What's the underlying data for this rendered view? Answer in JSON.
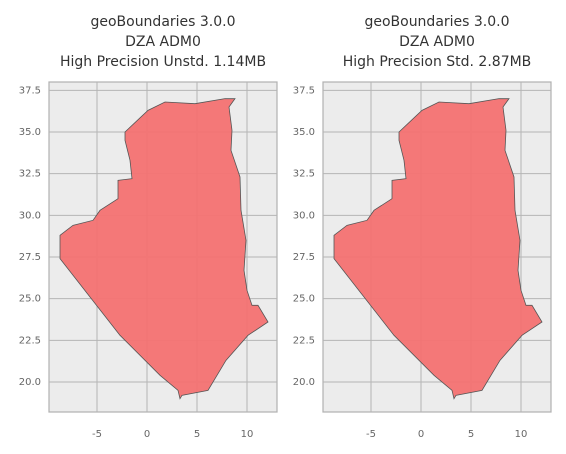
{
  "chart_data": [
    {
      "type": "map",
      "title": [
        "geoBoundaries 3.0.0",
        "DZA ADM0",
        "High Precision Unstd. 1.14MB"
      ],
      "x": [
        -2.2,
        0.1,
        1.8,
        4.8,
        7.8,
        8.8,
        8.2,
        8.5,
        8.4,
        9.3,
        9.4,
        9.9,
        9.7,
        10.0,
        10.5,
        11.1,
        12.1,
        10.1,
        7.9,
        6.1,
        3.5,
        3.3,
        3.1,
        1.3,
        -2.7,
        -8.7,
        -8.7,
        -7.4,
        -5.4,
        -4.7,
        -2.9,
        -2.9,
        -1.5,
        -1.7,
        -2.2
      ],
      "y": [
        35.0,
        36.3,
        36.8,
        36.7,
        37.0,
        37.0,
        36.5,
        35.1,
        33.9,
        32.3,
        30.3,
        28.5,
        26.7,
        25.5,
        24.6,
        24.6,
        23.6,
        22.8,
        21.3,
        19.5,
        19.2,
        19.0,
        19.5,
        20.4,
        22.8,
        27.4,
        28.8,
        29.4,
        29.7,
        30.3,
        31.0,
        32.1,
        32.2,
        33.3,
        34.5
      ],
      "color": "#f47272",
      "xlim": [
        -9.8,
        13.0
      ],
      "ylim": [
        18.2,
        38.0
      ],
      "xticks": [
        -5,
        0,
        5,
        10
      ],
      "yticks": [
        {
          "value": 20,
          "label": "20.0"
        },
        22.5,
        {
          "value": 25,
          "label": "25.0"
        },
        27.5,
        {
          "value": 30,
          "label": "30.0"
        },
        32.5,
        {
          "value": 35,
          "label": "35.0"
        },
        37.5
      ],
      "grid": true
    },
    {
      "type": "map",
      "title": [
        "geoBoundaries 3.0.0",
        "DZA ADM0",
        "High Precision Std. 2.87MB"
      ],
      "x": [
        -2.2,
        0.1,
        1.8,
        4.8,
        7.8,
        8.8,
        8.2,
        8.5,
        8.4,
        9.3,
        9.4,
        9.9,
        9.7,
        10.0,
        10.5,
        11.1,
        12.1,
        10.1,
        7.9,
        6.1,
        3.5,
        3.3,
        3.1,
        1.3,
        -2.7,
        -8.7,
        -8.7,
        -7.4,
        -5.4,
        -4.7,
        -2.9,
        -2.9,
        -1.5,
        -1.7,
        -2.2
      ],
      "y": [
        35.0,
        36.3,
        36.8,
        36.7,
        37.0,
        37.0,
        36.5,
        35.1,
        33.9,
        32.3,
        30.3,
        28.5,
        26.7,
        25.5,
        24.6,
        24.6,
        23.6,
        22.8,
        21.3,
        19.5,
        19.2,
        19.0,
        19.5,
        20.4,
        22.8,
        27.4,
        28.8,
        29.4,
        29.7,
        30.3,
        31.0,
        32.1,
        32.2,
        33.3,
        34.5
      ],
      "color": "#f47272",
      "xlim": [
        -9.8,
        13.0
      ],
      "ylim": [
        18.2,
        38.0
      ],
      "xticks": [
        -5,
        0,
        5,
        10
      ],
      "yticks": [
        {
          "value": 20,
          "label": "20.0"
        },
        22.5,
        {
          "value": 25,
          "label": "25.0"
        },
        27.5,
        {
          "value": 30,
          "label": "30.0"
        },
        32.5,
        {
          "value": 35,
          "label": "35.0"
        },
        37.5
      ],
      "grid": true
    }
  ]
}
